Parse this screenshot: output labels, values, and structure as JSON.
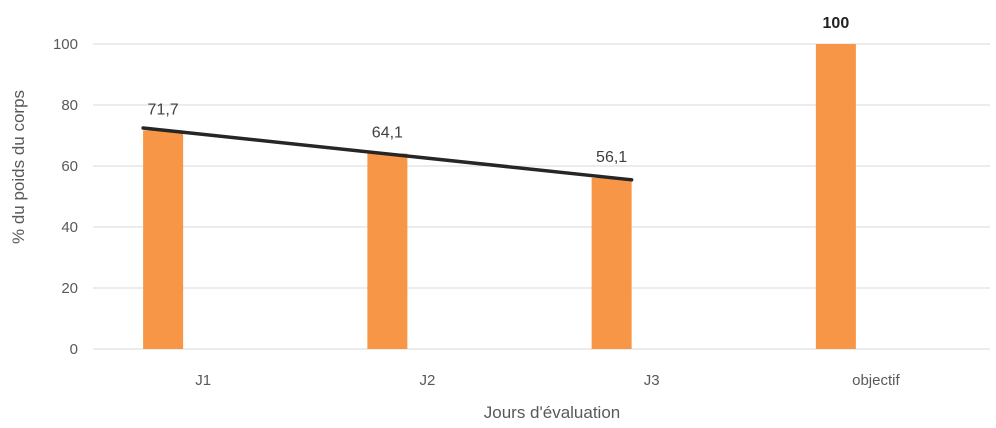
{
  "chart_data": {
    "type": "bar",
    "title": "",
    "xlabel": "Jours d'évaluation",
    "ylabel": "% du poids du corps",
    "categories": [
      "J1",
      "J2",
      "J3",
      "objectif"
    ],
    "values": [
      71.7,
      64.1,
      56.1,
      100
    ],
    "value_labels": [
      "71,7",
      "64,1",
      "56,1",
      "100"
    ],
    "ylim": [
      0,
      100
    ],
    "yticks": [
      0,
      20,
      40,
      60,
      80,
      100
    ],
    "grid": true,
    "legend": "none",
    "trendline": {
      "type": "linear",
      "categories": [
        "J1",
        "J2",
        "J3"
      ]
    },
    "colors": {
      "bar": "#F79646",
      "trendline": "#262626",
      "grid": "#D9D9D9"
    }
  }
}
